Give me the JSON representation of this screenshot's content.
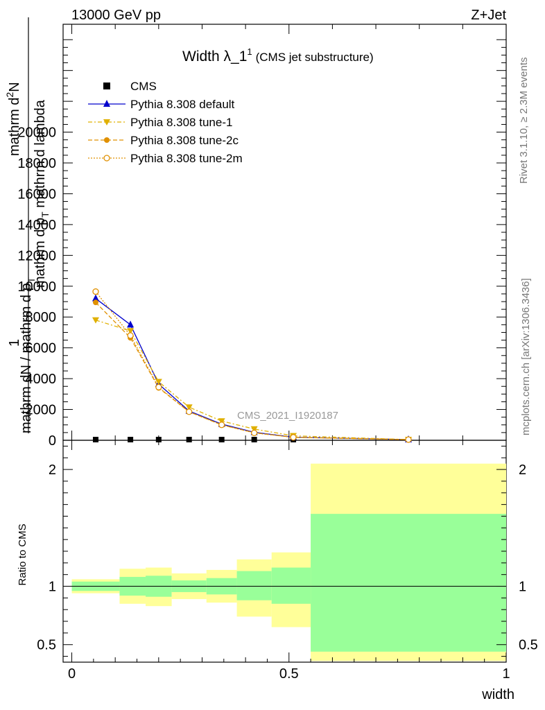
{
  "header": {
    "energy": "13000 GeV pp",
    "process": "Z+Jet"
  },
  "plot_title": {
    "main": "Width λ_1",
    "sup": "1",
    "sub": "(CMS jet substructure)"
  },
  "y_label_main": {
    "num_a": "mathrm d",
    "num_b": "2",
    "num_c": "N",
    "den_a": "mathrm d p",
    "den_b": "T",
    "den_c": " mathrm d lambda"
  },
  "y_label_prefix": {
    "one": "1",
    "den": "mathrm dN / mathrm d p",
    "den_sub": "T"
  },
  "y_label_ratio": "Ratio to CMS",
  "x_label": "width",
  "analysis_id": "CMS_2021_I1920187",
  "side_text": {
    "rivet": "Rivet 3.1.10, ≥ 2.3M events",
    "mcplots": "mcplots.cern.ch [arXiv:1306.3436]"
  },
  "legend": [
    {
      "label": "CMS",
      "marker": "square",
      "color": "#000000",
      "dash": ""
    },
    {
      "label": "Pythia 8.308 default",
      "marker": "triangle-up",
      "color": "#0000cc",
      "dash": ""
    },
    {
      "label": "Pythia 8.308 tune-1",
      "marker": "triangle-down",
      "color": "#e0b000",
      "dash": "6,3,2,3"
    },
    {
      "label": "Pythia 8.308 tune-2c",
      "marker": "circle",
      "color": "#e09000",
      "dash": "6,3"
    },
    {
      "label": "Pythia 8.308 tune-2m",
      "marker": "circle-open",
      "color": "#e09000",
      "dash": "2,2"
    }
  ],
  "chart_data": {
    "type": "line",
    "x": [
      0.055,
      0.135,
      0.2,
      0.27,
      0.345,
      0.42,
      0.51,
      0.775
    ],
    "x_edges": [
      0.0,
      0.11,
      0.17,
      0.23,
      0.31,
      0.38,
      0.46,
      0.55,
      1.0
    ],
    "xlim": [
      -0.02,
      1.0
    ],
    "ylim_main": [
      0,
      27000
    ],
    "ylim_ratio": [
      0.35,
      2.25
    ],
    "series": [
      {
        "name": "CMS",
        "values": [
          10,
          10,
          10,
          10,
          10,
          10,
          10,
          10
        ]
      },
      {
        "name": "Pythia 8.308 default",
        "values": [
          9200,
          7500,
          3650,
          1900,
          1050,
          520,
          200,
          20
        ]
      },
      {
        "name": "Pythia 8.308 tune-1",
        "values": [
          7800,
          7100,
          3800,
          2150,
          1250,
          730,
          290,
          25
        ]
      },
      {
        "name": "Pythia 8.308 tune-2c",
        "values": [
          8950,
          6650,
          3400,
          1850,
          1000,
          490,
          190,
          20
        ]
      },
      {
        "name": "Pythia 8.308 tune-2m",
        "values": [
          9650,
          6800,
          3450,
          1850,
          1000,
          480,
          190,
          20
        ]
      }
    ],
    "ratio_band_yellow": [
      [
        0.94,
        1.06
      ],
      [
        0.85,
        1.15
      ],
      [
        0.83,
        1.16
      ],
      [
        0.89,
        1.11
      ],
      [
        0.86,
        1.14
      ],
      [
        0.74,
        1.23
      ],
      [
        0.65,
        1.29
      ],
      [
        0.36,
        2.05
      ]
    ],
    "ratio_band_green": [
      [
        0.96,
        1.04
      ],
      [
        0.92,
        1.08
      ],
      [
        0.91,
        1.09
      ],
      [
        0.95,
        1.05
      ],
      [
        0.93,
        1.07
      ],
      [
        0.88,
        1.13
      ],
      [
        0.85,
        1.16
      ],
      [
        0.44,
        1.62
      ]
    ],
    "yticks_main": [
      0,
      2000,
      4000,
      6000,
      8000,
      10000,
      12000,
      14000,
      16000,
      18000,
      20000
    ],
    "yticks_main_labels": [
      "0",
      "2000",
      "4000",
      "6000",
      "8000",
      "10000",
      "12000",
      "14000",
      "16000",
      "18000",
      "20000"
    ],
    "yticks_ratio": [
      0.5,
      1,
      2
    ],
    "yticks_ratio_labels": [
      "0.5",
      "1",
      "2"
    ],
    "xticks": [
      0,
      0.5,
      1
    ],
    "xticks_labels": [
      "0",
      "0.5",
      "1"
    ]
  }
}
